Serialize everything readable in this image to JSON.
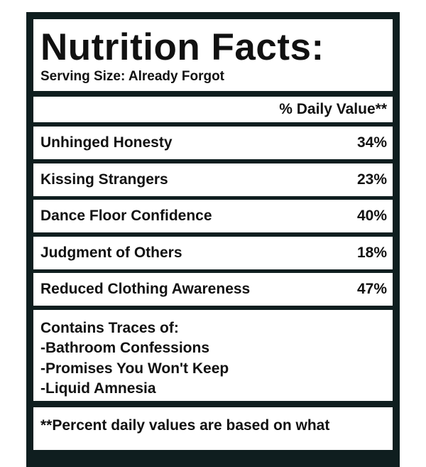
{
  "title": "Nutrition Facts:",
  "serving_size": "Serving Size: Already Forgot",
  "daily_value_header": "% Daily Value**",
  "rows": [
    {
      "name": "Unhinged Honesty",
      "value": "34%"
    },
    {
      "name": "Kissing Strangers",
      "value": "23%"
    },
    {
      "name": "Dance Floor Confidence",
      "value": "40%"
    },
    {
      "name": "Judgment of Others",
      "value": "18%"
    },
    {
      "name": "Reduced Clothing Awareness",
      "value": "47%"
    }
  ],
  "traces": {
    "heading": "Contains Traces of:",
    "items": [
      "-Bathroom Confessions",
      "-Promises You Won't Keep",
      "-Liquid Amnesia"
    ]
  },
  "footer": "**Percent daily values are based on what"
}
